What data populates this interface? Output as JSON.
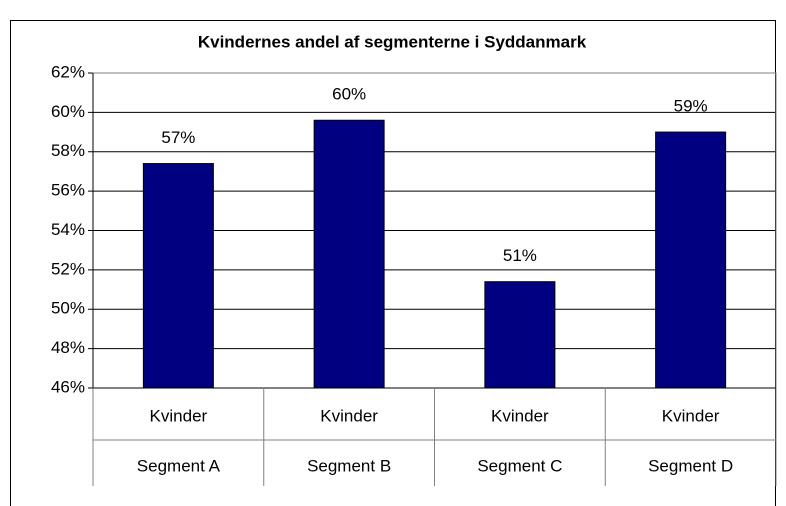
{
  "chart_data": {
    "type": "bar",
    "title": "Kvindernes andel af segmenterne i Syddanmark",
    "categories": [
      "Segment A",
      "Segment B",
      "Segment C",
      "Segment D"
    ],
    "series": [
      {
        "name": "Kvinder",
        "color": "#000080",
        "values": [
          57.4,
          59.6,
          51.4,
          59.0
        ],
        "value_labels": [
          "57%",
          "60%",
          "51%",
          "59%"
        ]
      }
    ],
    "ylim": [
      46,
      62
    ],
    "yticks": [
      {
        "value": 46,
        "label": "46%"
      },
      {
        "value": 48,
        "label": "48%"
      },
      {
        "value": 50,
        "label": "50%"
      },
      {
        "value": 52,
        "label": "52%"
      },
      {
        "value": 54,
        "label": "54%"
      },
      {
        "value": 56,
        "label": "56%"
      },
      {
        "value": 58,
        "label": "58%"
      },
      {
        "value": 60,
        "label": "60%"
      },
      {
        "value": 62,
        "label": "62%"
      }
    ],
    "grid": true
  }
}
